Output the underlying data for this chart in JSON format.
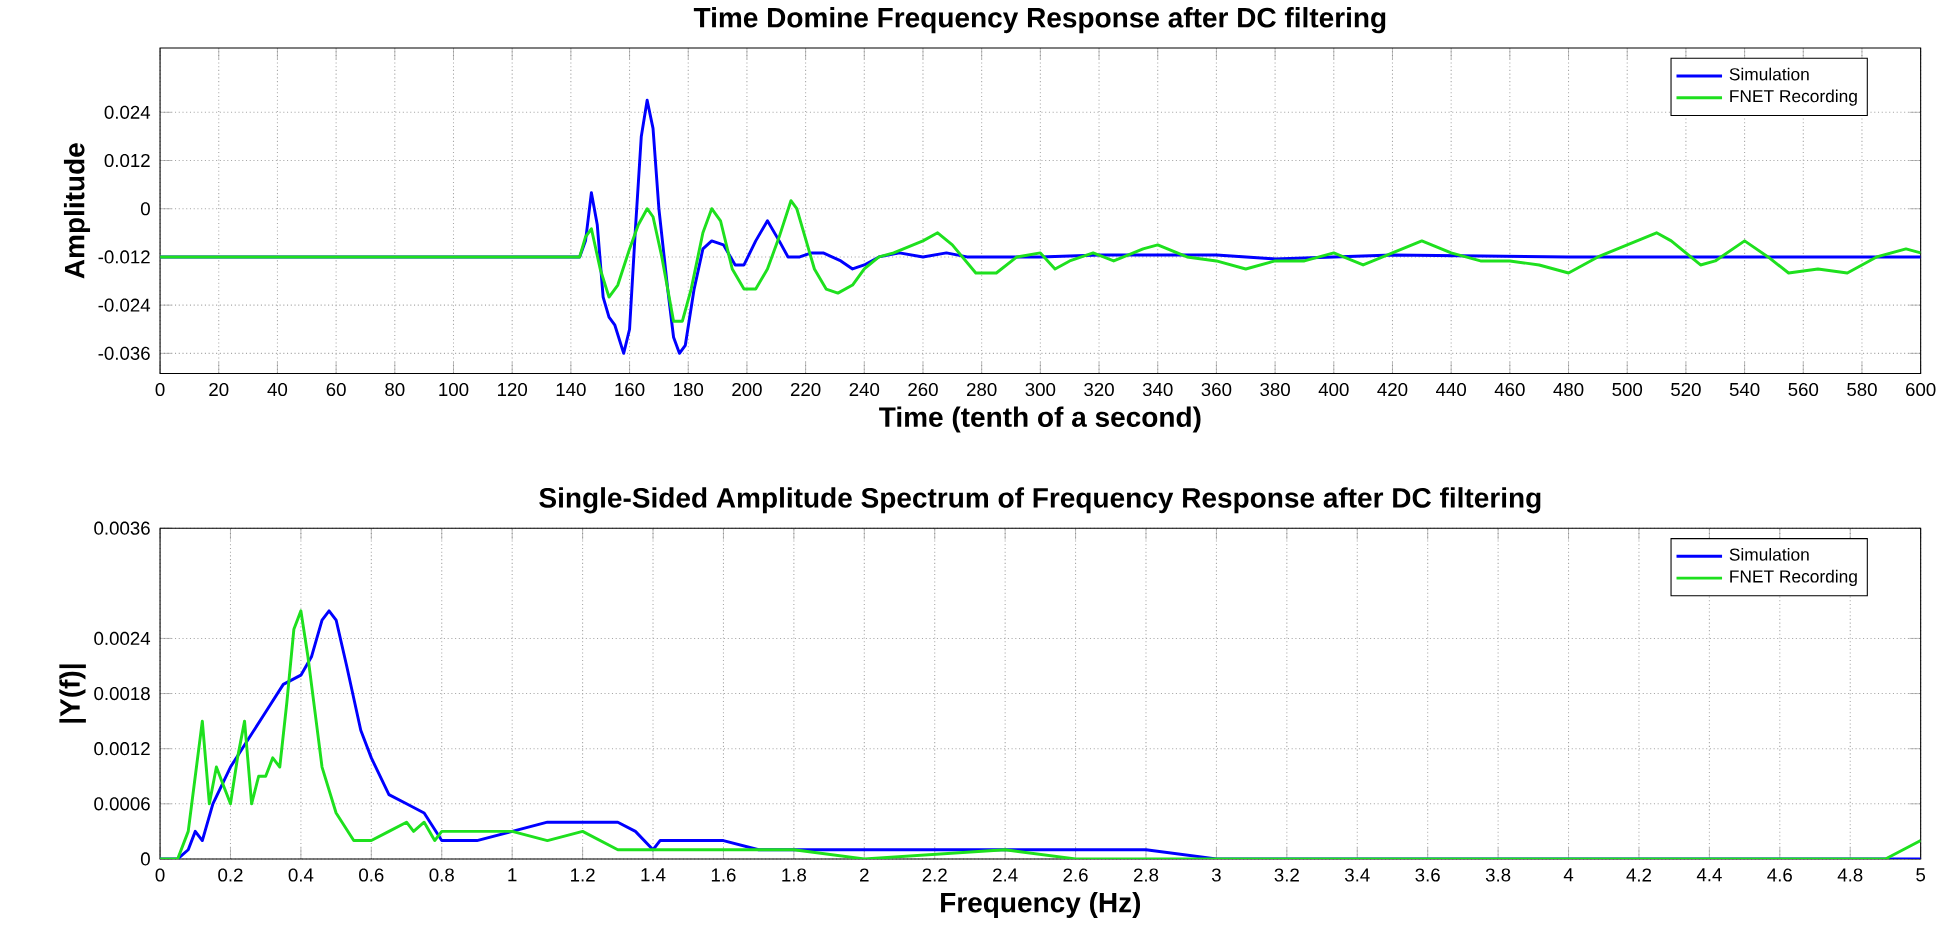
{
  "chart_data": [
    {
      "type": "line",
      "title": "Time Domine Frequency Response after DC filtering",
      "xlabel": "Time (tenth of a second)",
      "ylabel": "Amplitude",
      "xlim": [
        0,
        600
      ],
      "xticks": [
        0,
        20,
        40,
        60,
        80,
        100,
        120,
        140,
        160,
        180,
        200,
        220,
        240,
        260,
        280,
        300,
        320,
        340,
        360,
        380,
        400,
        420,
        440,
        460,
        480,
        500,
        520,
        540,
        560,
        580,
        600
      ],
      "ylim": [
        -0.041,
        0.04
      ],
      "yticks": [
        -0.036,
        -0.024,
        -0.012,
        0,
        0.012,
        0.024
      ],
      "grid": true,
      "legend": "top right",
      "line_style": "solid",
      "series": [
        {
          "name": "Simulation",
          "color": "#0000ff",
          "x": [
            0,
            143,
            145,
            147,
            149,
            151,
            153,
            155,
            158,
            160,
            162,
            164,
            166,
            168,
            170,
            173,
            175,
            177,
            179,
            182,
            185,
            188,
            192,
            196,
            199,
            203,
            207,
            211,
            214,
            218,
            222,
            226,
            232,
            236,
            240,
            245,
            252,
            260,
            268,
            275,
            285,
            300,
            320,
            360,
            380,
            420,
            480,
            600
          ],
          "values": [
            -0.012,
            -0.012,
            -0.008,
            0.004,
            -0.004,
            -0.022,
            -0.027,
            -0.029,
            -0.036,
            -0.03,
            -0.005,
            0.018,
            0.027,
            0.02,
            0.0,
            -0.02,
            -0.032,
            -0.036,
            -0.034,
            -0.02,
            -0.01,
            -0.008,
            -0.009,
            -0.014,
            -0.014,
            -0.008,
            -0.003,
            -0.008,
            -0.012,
            -0.012,
            -0.011,
            -0.011,
            -0.013,
            -0.015,
            -0.014,
            -0.012,
            -0.011,
            -0.012,
            -0.011,
            -0.012,
            -0.012,
            -0.012,
            -0.0115,
            -0.0115,
            -0.0125,
            -0.0115,
            -0.012,
            -0.012
          ]
        },
        {
          "name": "FNET Recording",
          "color": "#1ee01e",
          "x": [
            0,
            143,
            145,
            147,
            150,
            153,
            156,
            160,
            163,
            166,
            168,
            171,
            175,
            178,
            181,
            185,
            188,
            191,
            195,
            199,
            203,
            207,
            211,
            215,
            217,
            219,
            223,
            227,
            231,
            236,
            240,
            245,
            250,
            260,
            265,
            270,
            278,
            285,
            292,
            300,
            305,
            310,
            318,
            325,
            335,
            340,
            350,
            360,
            370,
            380,
            390,
            400,
            410,
            420,
            430,
            440,
            450,
            460,
            470,
            480,
            490,
            500,
            510,
            515,
            525,
            530,
            540,
            548,
            555,
            565,
            575,
            580,
            585,
            595,
            600
          ],
          "values": [
            -0.012,
            -0.012,
            -0.007,
            -0.005,
            -0.015,
            -0.022,
            -0.019,
            -0.01,
            -0.004,
            0.0,
            -0.002,
            -0.012,
            -0.028,
            -0.028,
            -0.02,
            -0.006,
            0.0,
            -0.003,
            -0.015,
            -0.02,
            -0.02,
            -0.015,
            -0.007,
            0.002,
            0.0,
            -0.005,
            -0.015,
            -0.02,
            -0.021,
            -0.019,
            -0.015,
            -0.012,
            -0.011,
            -0.008,
            -0.006,
            -0.009,
            -0.016,
            -0.016,
            -0.012,
            -0.011,
            -0.015,
            -0.013,
            -0.011,
            -0.013,
            -0.01,
            -0.009,
            -0.012,
            -0.013,
            -0.015,
            -0.013,
            -0.013,
            -0.011,
            -0.014,
            -0.011,
            -0.008,
            -0.011,
            -0.013,
            -0.013,
            -0.014,
            -0.016,
            -0.012,
            -0.009,
            -0.006,
            -0.008,
            -0.014,
            -0.013,
            -0.008,
            -0.012,
            -0.016,
            -0.015,
            -0.016,
            -0.014,
            -0.012,
            -0.01,
            -0.011
          ]
        }
      ]
    },
    {
      "type": "line",
      "title": "Single-Sided Amplitude Spectrum of Frequency Response after DC filtering",
      "xlabel": "Frequency (Hz)",
      "ylabel": "|Y(f)|",
      "xlim": [
        0,
        5
      ],
      "xticks": [
        0,
        0.2,
        0.4,
        0.6,
        0.8,
        1,
        1.2,
        1.4,
        1.6,
        1.8,
        2,
        2.2,
        2.4,
        2.6,
        2.8,
        3,
        3.2,
        3.4,
        3.6,
        3.8,
        4,
        4.2,
        4.4,
        4.6,
        4.8,
        5
      ],
      "ylim": [
        0,
        0.0036
      ],
      "yticks": [
        0,
        0.0006,
        0.0012,
        0.0018,
        0.0024,
        0.0036
      ],
      "grid": true,
      "legend": "top right",
      "line_style": "solid",
      "series": [
        {
          "name": "Simulation",
          "color": "#0000ff",
          "x": [
            0,
            0.05,
            0.08,
            0.1,
            0.12,
            0.15,
            0.2,
            0.25,
            0.3,
            0.35,
            0.4,
            0.43,
            0.46,
            0.48,
            0.5,
            0.53,
            0.57,
            0.6,
            0.65,
            0.7,
            0.75,
            0.8,
            0.9,
            1.0,
            1.1,
            1.2,
            1.3,
            1.35,
            1.4,
            1.42,
            1.5,
            1.6,
            1.7,
            1.8,
            2.0,
            2.2,
            2.4,
            2.8,
            3.0,
            3.5,
            4.0,
            4.5,
            5.0
          ],
          "values": [
            0,
            0,
            0.0001,
            0.0003,
            0.0002,
            0.0006,
            0.001,
            0.0013,
            0.0016,
            0.0019,
            0.002,
            0.0022,
            0.0026,
            0.0027,
            0.0026,
            0.0021,
            0.0014,
            0.0011,
            0.0007,
            0.0006,
            0.0005,
            0.0002,
            0.0002,
            0.0003,
            0.0004,
            0.0004,
            0.0004,
            0.0003,
            0.0001,
            0.0002,
            0.0002,
            0.0002,
            0.0001,
            0.0001,
            0.0001,
            0.0001,
            0.0001,
            0.0001,
            0,
            0,
            0,
            0,
            0
          ]
        },
        {
          "name": "FNET Recording",
          "color": "#1ee01e",
          "x": [
            0,
            0.05,
            0.08,
            0.1,
            0.12,
            0.14,
            0.16,
            0.18,
            0.2,
            0.22,
            0.24,
            0.26,
            0.28,
            0.3,
            0.32,
            0.34,
            0.36,
            0.38,
            0.4,
            0.42,
            0.44,
            0.46,
            0.5,
            0.55,
            0.6,
            0.65,
            0.7,
            0.72,
            0.75,
            0.78,
            0.8,
            0.85,
            0.9,
            1.0,
            1.1,
            1.2,
            1.3,
            1.4,
            1.5,
            1.6,
            1.8,
            2.0,
            2.4,
            2.6,
            3.0,
            3.5,
            4.0,
            4.5,
            4.9,
            5.0
          ],
          "values": [
            0,
            0,
            0.0003,
            0.0009,
            0.0015,
            0.0006,
            0.001,
            0.0008,
            0.0006,
            0.0011,
            0.0015,
            0.0006,
            0.0009,
            0.0009,
            0.0011,
            0.001,
            0.0017,
            0.0025,
            0.0027,
            0.0022,
            0.0016,
            0.001,
            0.0005,
            0.0002,
            0.0002,
            0.0003,
            0.0004,
            0.0003,
            0.0004,
            0.0002,
            0.0003,
            0.0003,
            0.0003,
            0.0003,
            0.0002,
            0.0003,
            0.0001,
            0.0001,
            0.0001,
            0.0001,
            0.0001,
            0,
            0.0001,
            0,
            0,
            0,
            0,
            0,
            0,
            0.0002
          ]
        }
      ]
    }
  ]
}
